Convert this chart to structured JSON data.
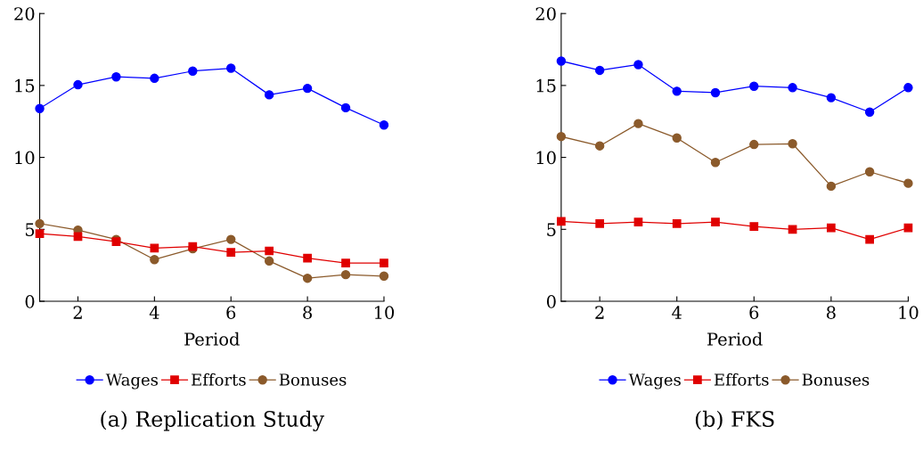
{
  "chart_data": [
    {
      "type": "line",
      "xlabel": "Period",
      "x": [
        1,
        2,
        3,
        4,
        5,
        6,
        7,
        8,
        9,
        10
      ],
      "xlim": [
        1,
        10
      ],
      "xticks": [
        2,
        4,
        6,
        8,
        10
      ],
      "ylim": [
        0,
        20
      ],
      "yticks": [
        0,
        5,
        10,
        15,
        20
      ],
      "grid": false,
      "legend": "bottom",
      "annotations": [
        "(a) Replication Study"
      ],
      "series": [
        {
          "name": "Wages",
          "color": "#0000ff",
          "marker": "circle",
          "values": [
            13.4,
            15.05,
            15.6,
            15.5,
            16.0,
            16.2,
            14.35,
            14.8,
            13.45,
            12.25
          ]
        },
        {
          "name": "Efforts",
          "color": "#e00000",
          "marker": "square",
          "values": [
            4.7,
            4.5,
            4.15,
            3.7,
            3.8,
            3.4,
            3.5,
            3.0,
            2.65,
            2.65
          ]
        },
        {
          "name": "Bonuses",
          "color": "#8b5a2b",
          "marker": "circle",
          "values": [
            5.4,
            4.95,
            4.3,
            2.9,
            3.65,
            4.3,
            2.8,
            1.6,
            1.85,
            1.75
          ]
        }
      ]
    },
    {
      "type": "line",
      "xlabel": "Period",
      "x": [
        1,
        2,
        3,
        4,
        5,
        6,
        7,
        8,
        9,
        10
      ],
      "xlim": [
        1,
        10
      ],
      "xticks": [
        2,
        4,
        6,
        8,
        10
      ],
      "ylim": [
        0,
        20
      ],
      "yticks": [
        0,
        5,
        10,
        15,
        20
      ],
      "grid": false,
      "legend": "bottom",
      "annotations": [
        "(b) FKS"
      ],
      "series": [
        {
          "name": "Wages",
          "color": "#0000ff",
          "marker": "circle",
          "values": [
            16.7,
            16.05,
            16.45,
            14.6,
            14.5,
            14.95,
            14.85,
            14.15,
            13.15,
            14.85
          ]
        },
        {
          "name": "Efforts",
          "color": "#e00000",
          "marker": "square",
          "values": [
            5.55,
            5.4,
            5.5,
            5.4,
            5.5,
            5.2,
            5.0,
            5.1,
            4.3,
            5.1
          ]
        },
        {
          "name": "Bonuses",
          "color": "#8b5a2b",
          "marker": "circle",
          "values": [
            11.45,
            10.8,
            12.35,
            11.35,
            9.65,
            10.9,
            10.95,
            8.0,
            9.0,
            8.2
          ]
        }
      ]
    }
  ]
}
